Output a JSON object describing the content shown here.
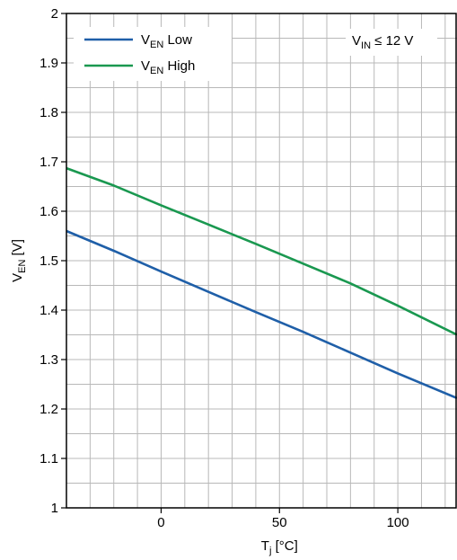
{
  "chart_data": {
    "type": "line",
    "xlabel": {
      "main": "T",
      "sub": "j",
      "rest": " [°C]"
    },
    "ylabel": {
      "main": "V",
      "sub": "EN",
      "rest": " [V]"
    },
    "xlim": [
      -40,
      125
    ],
    "ylim": [
      1.0,
      2.0
    ],
    "x_ticks": [
      0,
      50,
      100
    ],
    "y_ticks": [
      1.0,
      1.1,
      1.2,
      1.3,
      1.4,
      1.5,
      1.6,
      1.7,
      1.8,
      1.9,
      2.0
    ],
    "y_tick_labels": [
      "1",
      "1.1",
      "1.2",
      "1.3",
      "1.4",
      "1.5",
      "1.6",
      "1.7",
      "1.8",
      "1.9",
      "2"
    ],
    "x_minor_step": 10,
    "y_minor_step": 0.05,
    "grid": true,
    "legend_position": "top-left",
    "annotation": {
      "main": "V",
      "sub": "IN",
      "rest": " ≤ 12 V"
    },
    "series": [
      {
        "name": "V_EN Low",
        "label": {
          "main": "V",
          "sub": "EN",
          "rest": " Low"
        },
        "color": "#1f5fa8",
        "x": [
          -40,
          -20,
          0,
          20,
          40,
          60,
          80,
          100,
          125
        ],
        "y": [
          1.56,
          1.52,
          1.478,
          1.437,
          1.396,
          1.356,
          1.314,
          1.272,
          1.222
        ]
      },
      {
        "name": "V_EN High",
        "label": {
          "main": "V",
          "sub": "EN",
          "rest": " High"
        },
        "color": "#1a9850",
        "x": [
          -40,
          -20,
          0,
          20,
          40,
          60,
          80,
          100,
          125
        ],
        "y": [
          1.687,
          1.652,
          1.612,
          1.573,
          1.534,
          1.494,
          1.454,
          1.409,
          1.35
        ]
      }
    ]
  }
}
